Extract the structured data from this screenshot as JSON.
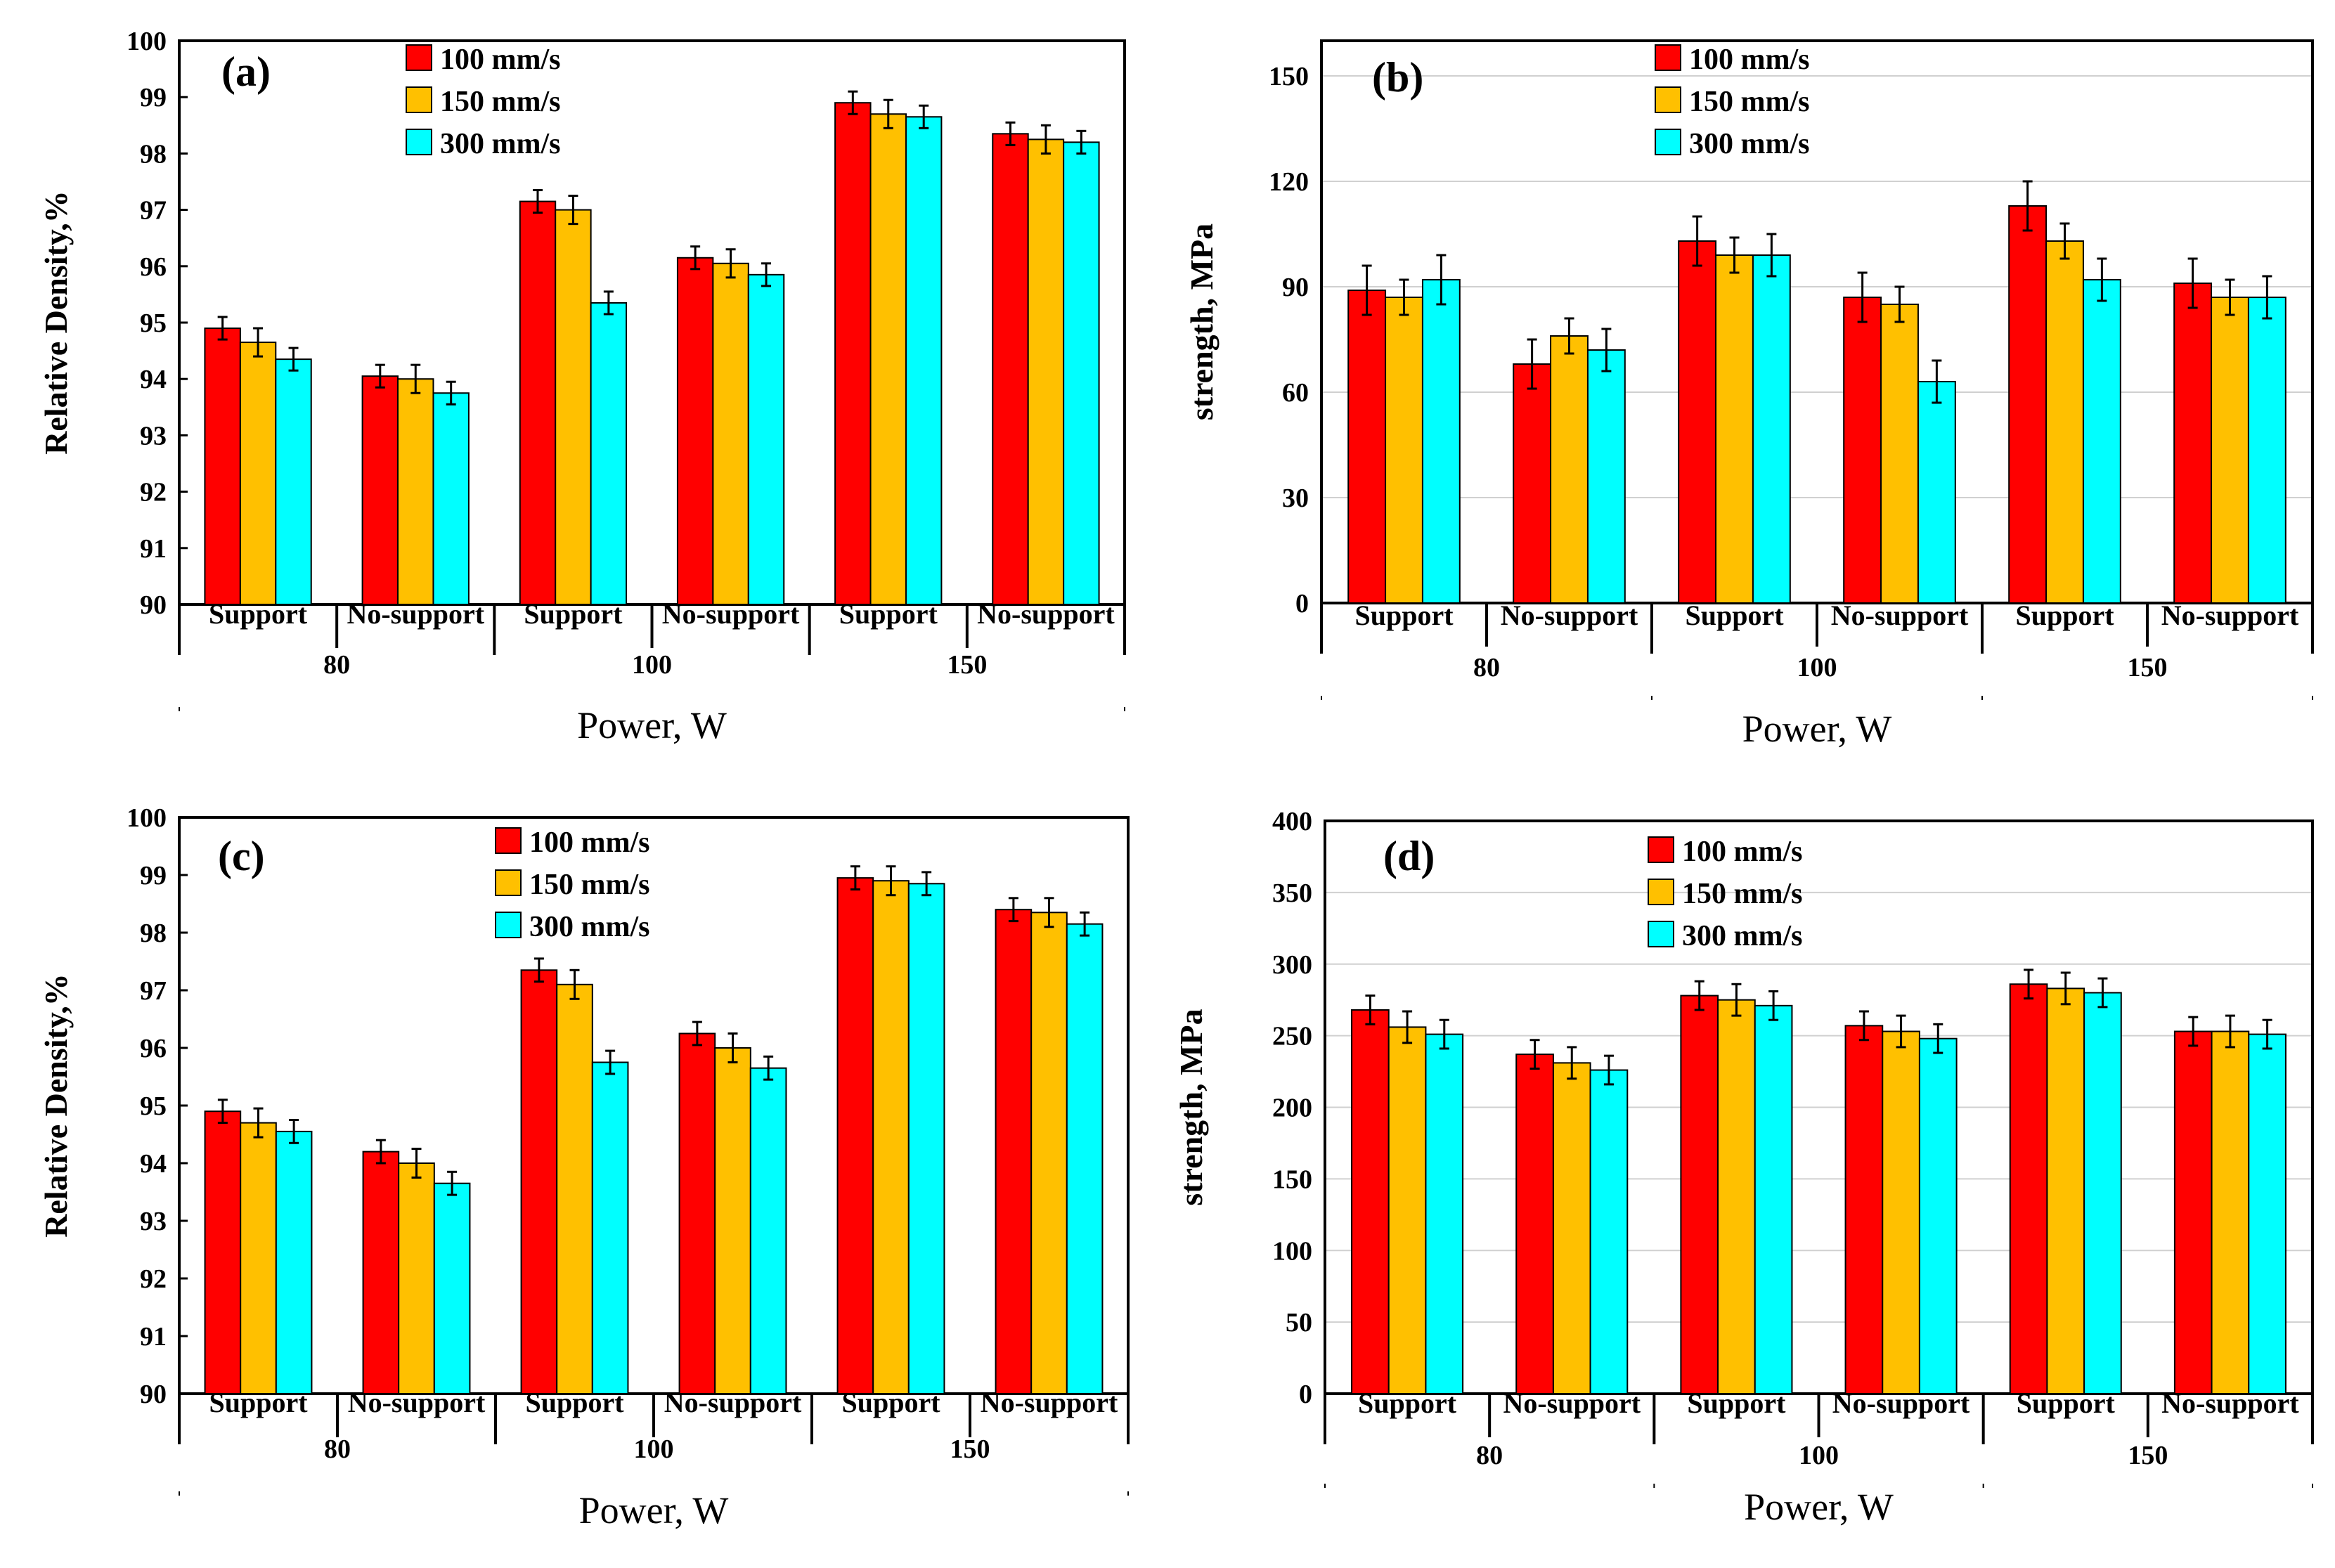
{
  "colors": {
    "series": [
      "#ff0000",
      "#ffc000",
      "#00ffff"
    ],
    "axis": "#000000",
    "grid": "#d0d0d0"
  },
  "chart_data": [
    {
      "type": "bar",
      "panel_label": "(a)",
      "ylabel": "Relative Density,%",
      "xlabel": "Power, W",
      "ylim": [
        90,
        100
      ],
      "yticks": [
        90,
        91,
        92,
        93,
        94,
        95,
        96,
        97,
        98,
        99,
        100
      ],
      "categories": [
        "Support",
        "No-support",
        "Support",
        "No-support",
        "Support",
        "No-support"
      ],
      "power_levels": [
        "80",
        "100",
        "150"
      ],
      "legend": "top-center",
      "series": [
        {
          "name": "100 mm/s",
          "values": [
            94.9,
            94.05,
            97.15,
            96.15,
            98.9,
            98.35
          ],
          "errors": [
            0.2,
            0.2,
            0.2,
            0.2,
            0.2,
            0.2
          ]
        },
        {
          "name": "150 mm/s",
          "values": [
            94.65,
            94.0,
            97.0,
            96.05,
            98.7,
            98.25
          ],
          "errors": [
            0.25,
            0.25,
            0.25,
            0.25,
            0.25,
            0.25
          ]
        },
        {
          "name": "300 mm/s",
          "values": [
            94.35,
            93.75,
            95.35,
            95.85,
            98.65,
            98.2
          ],
          "errors": [
            0.2,
            0.2,
            0.2,
            0.2,
            0.2,
            0.2
          ]
        }
      ]
    },
    {
      "type": "bar",
      "panel_label": "(b)",
      "ylabel": "strength, MPa",
      "xlabel": "Power, W",
      "ylim": [
        0,
        160
      ],
      "yticks": [
        0,
        30,
        60,
        90,
        120,
        150
      ],
      "categories": [
        "Support",
        "No-support",
        "Support",
        "No-support",
        "Support",
        "No-support"
      ],
      "power_levels": [
        "80",
        "100",
        "150"
      ],
      "legend": "top-center",
      "series": [
        {
          "name": "100 mm/s",
          "values": [
            89,
            68,
            103,
            87,
            113,
            91
          ],
          "errors": [
            7,
            7,
            7,
            7,
            7,
            7
          ]
        },
        {
          "name": "150 mm/s",
          "values": [
            87,
            76,
            99,
            85,
            103,
            87
          ],
          "errors": [
            5,
            5,
            5,
            5,
            5,
            5
          ]
        },
        {
          "name": "300 mm/s",
          "values": [
            92,
            72,
            99,
            63,
            92,
            87
          ],
          "errors": [
            7,
            6,
            6,
            6,
            6,
            6
          ]
        }
      ]
    },
    {
      "type": "bar",
      "panel_label": "(c)",
      "ylabel": "Relative Density,%",
      "xlabel": "Power, W",
      "ylim": [
        90,
        100
      ],
      "yticks": [
        90,
        91,
        92,
        93,
        94,
        95,
        96,
        97,
        98,
        99,
        100
      ],
      "categories": [
        "Support",
        "No-support",
        "Support",
        "No-support",
        "Support",
        "No-support"
      ],
      "power_levels": [
        "80",
        "100",
        "150"
      ],
      "legend": "top-center",
      "series": [
        {
          "name": "100 mm/s",
          "values": [
            94.9,
            94.2,
            97.35,
            96.25,
            98.95,
            98.4
          ],
          "errors": [
            0.2,
            0.2,
            0.2,
            0.2,
            0.2,
            0.2
          ]
        },
        {
          "name": "150 mm/s",
          "values": [
            94.7,
            94.0,
            97.1,
            96.0,
            98.9,
            98.35
          ],
          "errors": [
            0.25,
            0.25,
            0.25,
            0.25,
            0.25,
            0.25
          ]
        },
        {
          "name": "300 mm/s",
          "values": [
            94.55,
            93.65,
            95.75,
            95.65,
            98.85,
            98.15
          ],
          "errors": [
            0.2,
            0.2,
            0.2,
            0.2,
            0.2,
            0.2
          ]
        }
      ]
    },
    {
      "type": "bar",
      "panel_label": "(d)",
      "ylabel": "strength, MPa",
      "xlabel": "Power, W",
      "ylim": [
        0,
        400
      ],
      "yticks": [
        0,
        50,
        100,
        150,
        200,
        250,
        300,
        350,
        400
      ],
      "categories": [
        "Support",
        "No-support",
        "Support",
        "No-support",
        "Support",
        "No-support"
      ],
      "power_levels": [
        "80",
        "100",
        "150"
      ],
      "legend": "top-center",
      "series": [
        {
          "name": "100 mm/s",
          "values": [
            268,
            237,
            278,
            257,
            286,
            253
          ],
          "errors": [
            10,
            10,
            10,
            10,
            10,
            10
          ]
        },
        {
          "name": "150 mm/s",
          "values": [
            256,
            231,
            275,
            253,
            283,
            253
          ],
          "errors": [
            11,
            11,
            11,
            11,
            11,
            11
          ]
        },
        {
          "name": "300 mm/s",
          "values": [
            251,
            226,
            271,
            248,
            280,
            251
          ],
          "errors": [
            10,
            10,
            10,
            10,
            10,
            10
          ]
        }
      ]
    }
  ]
}
